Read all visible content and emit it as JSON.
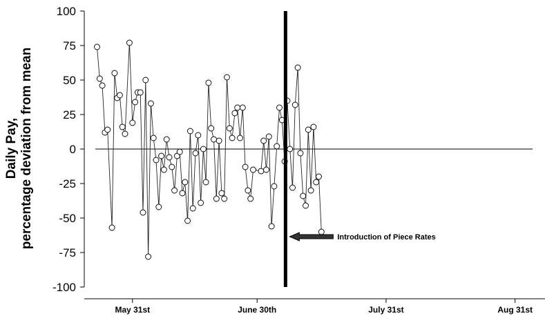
{
  "chart_data": {
    "type": "line",
    "title": "",
    "xlabel": "",
    "ylabel_lines": [
      "Daily Pay,",
      "percentage deviation from mean"
    ],
    "ylim": [
      -100,
      100
    ],
    "yticks": [
      100,
      75,
      50,
      25,
      0,
      -25,
      -50,
      -75,
      -100
    ],
    "xlim": [
      0,
      100
    ],
    "xticks": [
      {
        "label": "May 31st",
        "x": 8.5
      },
      {
        "label": "June 30th",
        "x": 37.0
      },
      {
        "label": "July 31st",
        "x": 66.5
      },
      {
        "label": "Aug 31st",
        "x": 96.0
      }
    ],
    "zero_line": true,
    "marker": "open-circle",
    "intervention_x": 43.5,
    "annotation": {
      "text": "Introduction of Piece Rates",
      "arrow": "left"
    },
    "series": [
      {
        "x": [
          0.4,
          1.0,
          1.6,
          2.2,
          2.8,
          3.8,
          4.4,
          5.0,
          5.6,
          6.2,
          6.8,
          7.8,
          8.5,
          9.1,
          9.7,
          10.3,
          10.9,
          11.5,
          12.1,
          12.7,
          13.3,
          13.9,
          14.5,
          15.1,
          15.7,
          16.3,
          16.9,
          17.5,
          18.1,
          18.7,
          19.3,
          19.9,
          20.5,
          21.1,
          21.7,
          22.3,
          22.9,
          23.5,
          24.1,
          24.7,
          25.3,
          25.9,
          26.5,
          27.1,
          27.7,
          28.3,
          28.9,
          29.5,
          30.1,
          30.7,
          31.3,
          31.9,
          32.5,
          33.1,
          33.7,
          34.3,
          34.9,
          35.5,
          36.1,
          37.9,
          38.5,
          39.1,
          39.7,
          40.3,
          40.9,
          41.5,
          42.1,
          42.7,
          43.3,
          43.9,
          44.5,
          45.1,
          45.7,
          46.3,
          46.9,
          47.5,
          48.1,
          48.7,
          49.3,
          49.9,
          50.5,
          51.1,
          51.7
        ],
        "values": [
          74,
          51,
          46,
          12,
          14,
          -57,
          55,
          37,
          39,
          16,
          11,
          77,
          19,
          34,
          41,
          41,
          -46,
          50,
          -78,
          33,
          8,
          -8,
          -42,
          -5,
          -15,
          7,
          -6,
          -13,
          -30,
          -5,
          -2,
          -32,
          -24,
          -52,
          13,
          -43,
          -3,
          10,
          -39,
          0,
          -24,
          48,
          15,
          7,
          -36,
          6,
          -32,
          -36,
          52,
          15,
          8,
          26,
          30,
          8,
          30,
          -13,
          -30,
          -36,
          -15,
          -16,
          6,
          -15,
          9,
          -56,
          -27,
          2,
          30,
          21,
          -9,
          35,
          0,
          -28,
          32,
          59,
          -3,
          -34,
          -41,
          14,
          -30,
          16,
          -24,
          -20,
          -60
        ]
      }
    ]
  }
}
